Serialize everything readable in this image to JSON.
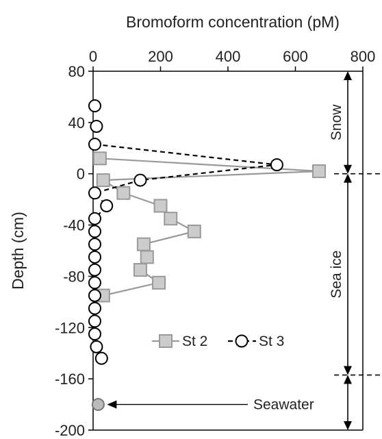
{
  "chart_data": {
    "type": "scatter",
    "title": "",
    "xlabel": "Bromoform concentration (pM)",
    "ylabel": "Depth (cm)",
    "xlim": [
      0,
      800
    ],
    "ylim": [
      -200,
      80
    ],
    "x_axis_position": "top",
    "grid": false,
    "xticks": [
      "0",
      "200",
      "400",
      "600",
      "800"
    ],
    "yticks": [
      "80",
      "40",
      "0",
      "-40",
      "-80",
      "-120",
      "-160",
      "-200"
    ],
    "legend_position": "lower-center",
    "series": [
      {
        "name": "St 2",
        "marker": "square",
        "line": "solid",
        "color": "#999999",
        "fill": "#cccccc",
        "points": [
          {
            "x": 20,
            "y": 12
          },
          {
            "x": 670,
            "y": 2
          },
          {
            "x": 30,
            "y": -5
          },
          {
            "x": 90,
            "y": -15
          },
          {
            "x": 200,
            "y": -25
          },
          {
            "x": 230,
            "y": -35
          },
          {
            "x": 300,
            "y": -45
          },
          {
            "x": 150,
            "y": -55
          },
          {
            "x": 160,
            "y": -65
          },
          {
            "x": 140,
            "y": -75
          },
          {
            "x": 195,
            "y": -85
          },
          {
            "x": 30,
            "y": -95
          }
        ]
      },
      {
        "name": "St 3",
        "marker": "circle",
        "line": "dashed",
        "color": "#000000",
        "fill": "#ffffff",
        "points": [
          {
            "x": 5,
            "y": 23
          },
          {
            "x": 545,
            "y": 7
          },
          {
            "x": 140,
            "y": -5
          },
          {
            "x": 5,
            "y": -15
          },
          {
            "x": 40,
            "y": -25
          },
          {
            "x": 5,
            "y": -35
          },
          {
            "x": 5,
            "y": -45
          },
          {
            "x": 5,
            "y": -55
          },
          {
            "x": 5,
            "y": -65
          },
          {
            "x": 5,
            "y": -75
          },
          {
            "x": 5,
            "y": -85
          },
          {
            "x": 5,
            "y": -95
          },
          {
            "x": 5,
            "y": -105
          },
          {
            "x": 5,
            "y": -115
          },
          {
            "x": 5,
            "y": -125
          },
          {
            "x": 10,
            "y": -135
          },
          {
            "x": 25,
            "y": -144
          }
        ],
        "unconnected_points": [
          {
            "x": 5,
            "y": 53
          },
          {
            "x": 10,
            "y": 37
          }
        ]
      }
    ],
    "extra_points": [
      {
        "label": "Seawater",
        "x": 15,
        "y": -180,
        "marker": "circle",
        "color": "#777777",
        "fill": "#bbbbbb"
      }
    ],
    "annotations": {
      "snow": "Snow",
      "sea_ice": "Sea ice",
      "seawater": "Seawater",
      "snow_range": [
        80,
        0
      ],
      "sea_ice_range": [
        0,
        -157
      ],
      "seawater_range": [
        -157,
        -200
      ]
    }
  }
}
